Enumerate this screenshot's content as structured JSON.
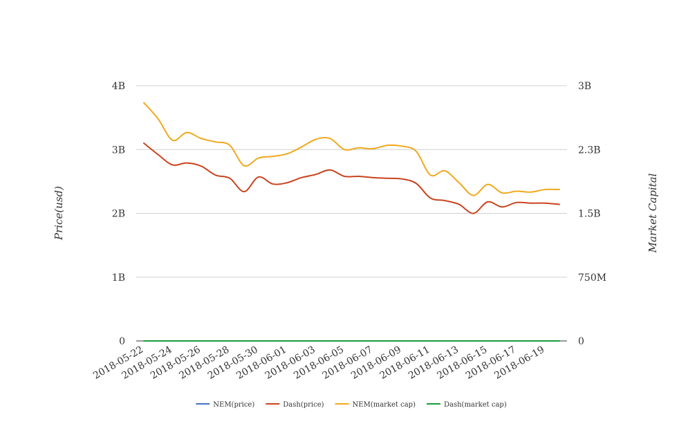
{
  "chart_data": {
    "type": "line",
    "x": [
      "2018-05-22",
      "2018-05-23",
      "2018-05-24",
      "2018-05-25",
      "2018-05-26",
      "2018-05-27",
      "2018-05-28",
      "2018-05-29",
      "2018-05-30",
      "2018-05-31",
      "2018-06-01",
      "2018-06-02",
      "2018-06-03",
      "2018-06-04",
      "2018-06-05",
      "2018-06-06",
      "2018-06-07",
      "2018-06-08",
      "2018-06-09",
      "2018-06-10",
      "2018-06-11",
      "2018-06-12",
      "2018-06-13",
      "2018-06-14",
      "2018-06-15",
      "2018-06-16",
      "2018-06-17",
      "2018-06-18",
      "2018-06-19",
      "2018-06-20"
    ],
    "x_tick_labels": [
      "2018-05-22",
      "2018-05-24",
      "2018-05-26",
      "2018-05-28",
      "2018-05-30",
      "2018-06-01",
      "2018-06-03",
      "2018-06-05",
      "2018-06-07",
      "2018-06-09",
      "2018-06-11",
      "2018-06-13",
      "2018-06-15",
      "2018-06-17",
      "2018-06-19"
    ],
    "y_left": {
      "label": "Price(usd)",
      "range": [
        0,
        4000000000
      ],
      "ticks": [
        0,
        1000000000,
        2000000000,
        3000000000,
        4000000000
      ],
      "tick_labels": [
        "0",
        "1B",
        "2B",
        "3B",
        "4B"
      ]
    },
    "y_right": {
      "label": "Market Capital",
      "range": [
        0,
        3000000000
      ],
      "ticks": [
        0,
        750000000,
        1500000000,
        2250000000,
        3000000000
      ],
      "tick_labels": [
        "0",
        "750M",
        "1.5B",
        "2.3B",
        "3B"
      ]
    },
    "grid": true,
    "legend_position": "bottom",
    "series": [
      {
        "name": "NEM(price)",
        "axis": "left",
        "color": "#4472c4",
        "values": [
          0.27,
          0.26,
          0.25,
          0.26,
          0.25,
          0.24,
          0.23,
          0.21,
          0.22,
          0.22,
          0.22,
          0.23,
          0.23,
          0.24,
          0.23,
          0.22,
          0.22,
          0.22,
          0.21,
          0.2,
          0.18,
          0.18,
          0.17,
          0.16,
          0.17,
          0.17,
          0.17,
          0.17,
          0.16,
          0.16
        ]
      },
      {
        "name": "Dash(price)",
        "axis": "left",
        "color": "#c9431e",
        "values": [
          3100000000,
          2920000000,
          2760000000,
          2790000000,
          2740000000,
          2600000000,
          2550000000,
          2340000000,
          2570000000,
          2460000000,
          2480000000,
          2560000000,
          2610000000,
          2680000000,
          2580000000,
          2580000000,
          2560000000,
          2550000000,
          2540000000,
          2470000000,
          2240000000,
          2200000000,
          2140000000,
          2000000000,
          2180000000,
          2100000000,
          2170000000,
          2160000000,
          2160000000,
          2140000000
        ]
      },
      {
        "name": "NEM(market cap)",
        "axis": "right",
        "color": "#f0a81c",
        "values": [
          2800000000,
          2610000000,
          2360000000,
          2450000000,
          2380000000,
          2340000000,
          2300000000,
          2060000000,
          2150000000,
          2170000000,
          2200000000,
          2280000000,
          2370000000,
          2380000000,
          2250000000,
          2270000000,
          2260000000,
          2300000000,
          2290000000,
          2230000000,
          1950000000,
          2000000000,
          1860000000,
          1710000000,
          1840000000,
          1740000000,
          1760000000,
          1750000000,
          1780000000,
          1780000000
        ]
      },
      {
        "name": "Dash(market cap)",
        "axis": "right",
        "color": "#1a9a3a",
        "values": [
          0,
          0,
          0,
          0,
          0,
          0,
          0,
          0,
          0,
          0,
          0,
          0,
          0,
          0,
          0,
          0,
          0,
          0,
          0,
          0,
          0,
          0,
          0,
          0,
          0,
          0,
          0,
          0,
          0,
          0
        ]
      }
    ]
  }
}
